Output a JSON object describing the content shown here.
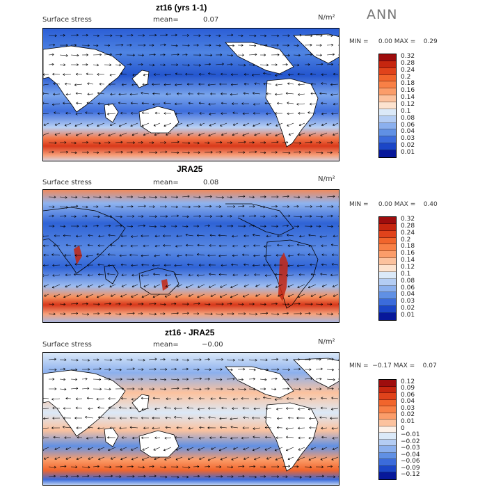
{
  "season": "ANN",
  "chart_data": [
    {
      "type": "heatmap",
      "title": "zt16 (yrs 1-1)",
      "field_label": "Surface stress",
      "mean_label": "mean=",
      "mean_value": "0.07",
      "units": "N/m²",
      "min_max": "MIN =     0.00 MAX =    0.29",
      "min": 0.0,
      "max": 0.29,
      "levels": [
        "0.32",
        "0.28",
        "0.24",
        "0.2",
        "0.18",
        "0.16",
        "0.14",
        "0.12",
        "0.1",
        "0.08",
        "0.06",
        "0.04",
        "0.03",
        "0.02",
        "0.01"
      ],
      "colors": [
        "#9e0d0d",
        "#c6260f",
        "#e0431b",
        "#f1652c",
        "#f88046",
        "#fb9d6a",
        "#fcc29e",
        "#fde3cf",
        "#dbe9f8",
        "#b4cdf4",
        "#8bb0ee",
        "#6090e4",
        "#3b6bdb",
        "#1b46c7",
        "#07189a"
      ]
    },
    {
      "type": "heatmap",
      "title": "JRA25",
      "field_label": "Surface stress",
      "mean_label": "mean=",
      "mean_value": "0.08",
      "units": "N/m²",
      "min_max": "MIN =     0.00 MAX =    0.40",
      "min": 0.0,
      "max": 0.4,
      "levels": [
        "0.32",
        "0.28",
        "0.24",
        "0.2",
        "0.18",
        "0.16",
        "0.14",
        "0.12",
        "0.1",
        "0.08",
        "0.06",
        "0.04",
        "0.03",
        "0.02",
        "0.01"
      ],
      "colors": [
        "#9e0d0d",
        "#c6260f",
        "#e0431b",
        "#f1652c",
        "#f88046",
        "#fb9d6a",
        "#fcc29e",
        "#fde3cf",
        "#dbe9f8",
        "#b4cdf4",
        "#8bb0ee",
        "#6090e4",
        "#3b6bdb",
        "#1b46c7",
        "#07189a"
      ]
    },
    {
      "type": "heatmap",
      "title": "zt16 - JRA25",
      "field_label": "Surface stress",
      "mean_label": "mean=",
      "mean_value": "−0.00",
      "units": "N/m²",
      "min_max": "MIN =  −0.17 MAX =    0.07",
      "min": -0.17,
      "max": 0.07,
      "levels": [
        "0.12",
        "0.09",
        "0.06",
        "0.04",
        "0.03",
        "0.02",
        "0.01",
        "0",
        "−0.01",
        "−0.02",
        "−0.03",
        "−0.04",
        "−0.06",
        "−0.09",
        "−0.12"
      ],
      "colors": [
        "#9e0d0d",
        "#c6260f",
        "#e0431b",
        "#f1652c",
        "#f88046",
        "#fb9d6a",
        "#fcc29e",
        "#fdf1e8",
        "#dbe9f8",
        "#b4cdf4",
        "#8bb0ee",
        "#6090e4",
        "#3b6bdb",
        "#1b46c7",
        "#07189a"
      ]
    }
  ]
}
